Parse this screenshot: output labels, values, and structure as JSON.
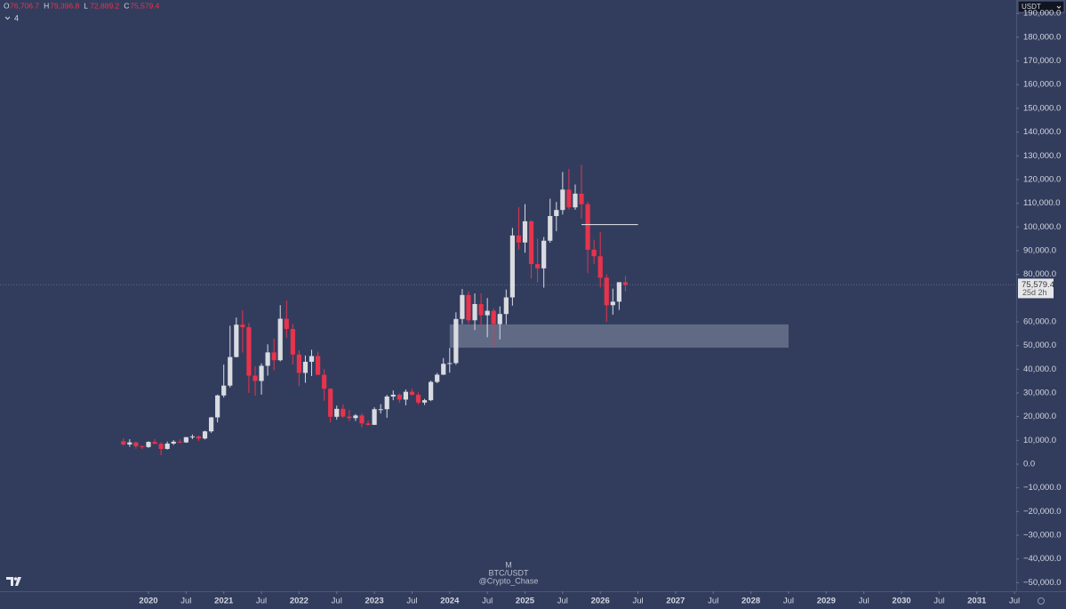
{
  "chart_data": {
    "type": "candlestick",
    "legend_ohlc": [
      {
        "key": "O",
        "value": "76,706.7"
      },
      {
        "key": "H",
        "value": "79,396.8"
      },
      {
        "key": "L",
        "value": "72,889.2"
      },
      {
        "key": "C",
        "value": "75,579.4"
      }
    ],
    "indicator_count": "4",
    "currency": "USDT",
    "watermark": [
      "M",
      "BTC/USDT",
      "@Crypto_Chase"
    ],
    "up_color": "#d9dbe1",
    "down_color": "#e8334c",
    "x": [
      "2019-09",
      "2019-10",
      "2019-11",
      "2019-12",
      "2020-01",
      "2020-02",
      "2020-03",
      "2020-04",
      "2020-05",
      "2020-06",
      "2020-07",
      "2020-08",
      "2020-09",
      "2020-10",
      "2020-11",
      "2020-12",
      "2021-01",
      "2021-02",
      "2021-03",
      "2021-04",
      "2021-05",
      "2021-06",
      "2021-07",
      "2021-08",
      "2021-09",
      "2021-10",
      "2021-11",
      "2021-12",
      "2022-01",
      "2022-02",
      "2022-03",
      "2022-04",
      "2022-05",
      "2022-06",
      "2022-07",
      "2022-08",
      "2022-09",
      "2022-10",
      "2022-11",
      "2022-12",
      "2023-01",
      "2023-02",
      "2023-03",
      "2023-04",
      "2023-05",
      "2023-06",
      "2023-07",
      "2023-08",
      "2023-09",
      "2023-10",
      "2023-11",
      "2023-12",
      "2024-01",
      "2024-02",
      "2024-03",
      "2024-04",
      "2024-05",
      "2024-06",
      "2024-07",
      "2024-08",
      "2024-09",
      "2024-10",
      "2024-11",
      "2024-12",
      "2025-01",
      "2025-02",
      "2025-03",
      "2025-04",
      "2025-05",
      "2025-06",
      "2025-07",
      "2025-08",
      "2025-09",
      "2025-10",
      "2025-11",
      "2025-12",
      "2026-01",
      "2026-02",
      "2026-03",
      "2026-04",
      "2026-05"
    ],
    "open": [
      9600,
      8300,
      9150,
      7550,
      7200,
      9350,
      8550,
      6400,
      8650,
      9450,
      9150,
      11350,
      11650,
      10800,
      13800,
      19700,
      28950,
      33100,
      45150,
      58800,
      57700,
      37300,
      35050,
      41450,
      47100,
      43800,
      61300,
      57000,
      46200,
      38450,
      43150,
      45550,
      37650,
      31800,
      19950,
      23300,
      20050,
      19400,
      20500,
      17150,
      16550,
      23150,
      23150,
      28500,
      29250,
      27200,
      30500,
      29250,
      25950,
      26950,
      34650,
      37700,
      42300,
      42600,
      61200,
      71300,
      60650,
      67500,
      62750,
      64650,
      59000,
      63300,
      70300,
      96400,
      93450,
      102400,
      84350,
      82550,
      94200,
      104600,
      107150,
      115750,
      108250,
      114050,
      109600,
      90400,
      87650,
      78600,
      67000,
      68500,
      76706.7
    ],
    "high": [
      10900,
      10500,
      9500,
      7750,
      9600,
      10500,
      9200,
      9500,
      10100,
      10400,
      11450,
      12500,
      12100,
      14100,
      19900,
      29300,
      41950,
      58350,
      61800,
      64850,
      59500,
      41300,
      42450,
      50500,
      52900,
      67000,
      69000,
      59100,
      48000,
      45800,
      48200,
      47450,
      40050,
      31950,
      24650,
      25200,
      22800,
      21100,
      21450,
      18400,
      23950,
      25250,
      29200,
      31050,
      29850,
      31450,
      31800,
      30250,
      27500,
      35200,
      38450,
      44700,
      48950,
      64000,
      73800,
      72800,
      71950,
      72000,
      70000,
      65600,
      66500,
      73600,
      99600,
      108350,
      109600,
      102750,
      95000,
      95750,
      111900,
      110550,
      123200,
      124450,
      117900,
      126200,
      110650,
      94600,
      97900,
      80000,
      74000,
      76700,
      79396.8
    ],
    "low": [
      7700,
      7300,
      6500,
      6400,
      6850,
      8450,
      3800,
      6150,
      8100,
      8850,
      8950,
      10550,
      9800,
      10400,
      13200,
      17600,
      28100,
      32300,
      45000,
      47050,
      30000,
      28800,
      29300,
      37300,
      39600,
      43300,
      53250,
      42000,
      32900,
      34300,
      37150,
      37600,
      26700,
      17600,
      18800,
      19550,
      18150,
      18200,
      15500,
      16250,
      16500,
      21350,
      19550,
      26950,
      25800,
      24800,
      28850,
      25150,
      24900,
      26550,
      34100,
      37600,
      38550,
      41900,
      59000,
      59200,
      56550,
      58400,
      53500,
      49000,
      52550,
      58900,
      66800,
      90500,
      89150,
      78250,
      76600,
      74400,
      93350,
      98200,
      105250,
      107350,
      107250,
      103500,
      80600,
      84400,
      74500,
      60000,
      63000,
      65000,
      72889.2
    ],
    "close": [
      8300,
      9150,
      7550,
      7200,
      9350,
      8550,
      6400,
      8650,
      9450,
      9150,
      11350,
      11650,
      10800,
      13800,
      19700,
      28950,
      33100,
      45150,
      58800,
      57700,
      37300,
      35050,
      41450,
      47100,
      43800,
      61300,
      57000,
      46200,
      38450,
      43150,
      45550,
      37650,
      31800,
      19950,
      23300,
      20050,
      19400,
      20500,
      17150,
      16550,
      23150,
      23150,
      28500,
      29250,
      27200,
      30500,
      29250,
      25950,
      26950,
      34650,
      37700,
      42300,
      42600,
      61200,
      71300,
      60650,
      67500,
      62750,
      64650,
      59000,
      63300,
      70300,
      96400,
      93450,
      102400,
      84350,
      82550,
      94200,
      104600,
      107150,
      115750,
      108250,
      114050,
      109600,
      90400,
      87650,
      78600,
      67000,
      68500,
      76706.7,
      75579.4
    ],
    "box": {
      "x": [
        "2024-01",
        "2028-07"
      ],
      "y": [
        49100,
        58900
      ],
      "color": "#9aa1b6"
    },
    "hline": {
      "x": [
        "2025-10",
        "2026-07"
      ],
      "y": 101000,
      "color": "#e6e8ee"
    },
    "last_price": {
      "value": 75579.4,
      "label": "75,579.4"
    },
    "countdown": "25d 2h",
    "ylim": [
      -53600,
      195700
    ],
    "yticks": [
      {
        "value": 190000,
        "label": "190,000.0"
      },
      {
        "value": 180000,
        "label": "180,000.0"
      },
      {
        "value": 170000,
        "label": "170,000.0"
      },
      {
        "value": 160000,
        "label": "160,000.0"
      },
      {
        "value": 150000,
        "label": "150,000.0"
      },
      {
        "value": 140000,
        "label": "140,000.0"
      },
      {
        "value": 130000,
        "label": "130,000.0"
      },
      {
        "value": 120000,
        "label": "120,000.0"
      },
      {
        "value": 110000,
        "label": "110,000.0"
      },
      {
        "value": 100000,
        "label": "100,000.0"
      },
      {
        "value": 90000,
        "label": "90,000.0"
      },
      {
        "value": 80000,
        "label": "80,000.0"
      },
      {
        "value": 60000,
        "label": "60,000.0"
      },
      {
        "value": 50000,
        "label": "50,000.0"
      },
      {
        "value": 40000,
        "label": "40,000.0"
      },
      {
        "value": 30000,
        "label": "30,000.0"
      },
      {
        "value": 20000,
        "label": "20,000.0"
      },
      {
        "value": 10000,
        "label": "10,000.0"
      },
      {
        "value": 0,
        "label": "0.0"
      },
      {
        "value": -10000,
        "label": "−10,000.0"
      },
      {
        "value": -20000,
        "label": "−20,000.0"
      },
      {
        "value": -30000,
        "label": "−30,000.0"
      },
      {
        "value": -40000,
        "label": "−40,000.0"
      },
      {
        "value": -50000,
        "label": "−50,000.0"
      }
    ],
    "xticks": [
      {
        "value": "2020-01",
        "label": "2020"
      },
      {
        "value": "2020-07",
        "label": "Jul"
      },
      {
        "value": "2021-01",
        "label": "2021"
      },
      {
        "value": "2021-07",
        "label": "Jul"
      },
      {
        "value": "2022-01",
        "label": "2022"
      },
      {
        "value": "2022-07",
        "label": "Jul"
      },
      {
        "value": "2023-01",
        "label": "2023"
      },
      {
        "value": "2023-07",
        "label": "Jul"
      },
      {
        "value": "2024-01",
        "label": "2024"
      },
      {
        "value": "2024-07",
        "label": "Jul"
      },
      {
        "value": "2025-01",
        "label": "2025"
      },
      {
        "value": "2025-07",
        "label": "Jul"
      },
      {
        "value": "2026-01",
        "label": "2026"
      },
      {
        "value": "2026-07",
        "label": "Jul"
      },
      {
        "value": "2027-01",
        "label": "2027"
      },
      {
        "value": "2027-07",
        "label": "Jul"
      },
      {
        "value": "2028-01",
        "label": "2028"
      },
      {
        "value": "2028-07",
        "label": "Jul"
      },
      {
        "value": "2029-01",
        "label": "2029"
      },
      {
        "value": "2029-07",
        "label": "Jul"
      },
      {
        "value": "2030-01",
        "label": "2030"
      },
      {
        "value": "2030-07",
        "label": "Jul"
      },
      {
        "value": "2031-01",
        "label": "2031"
      },
      {
        "value": "2031-07",
        "label": "Jul"
      }
    ]
  }
}
